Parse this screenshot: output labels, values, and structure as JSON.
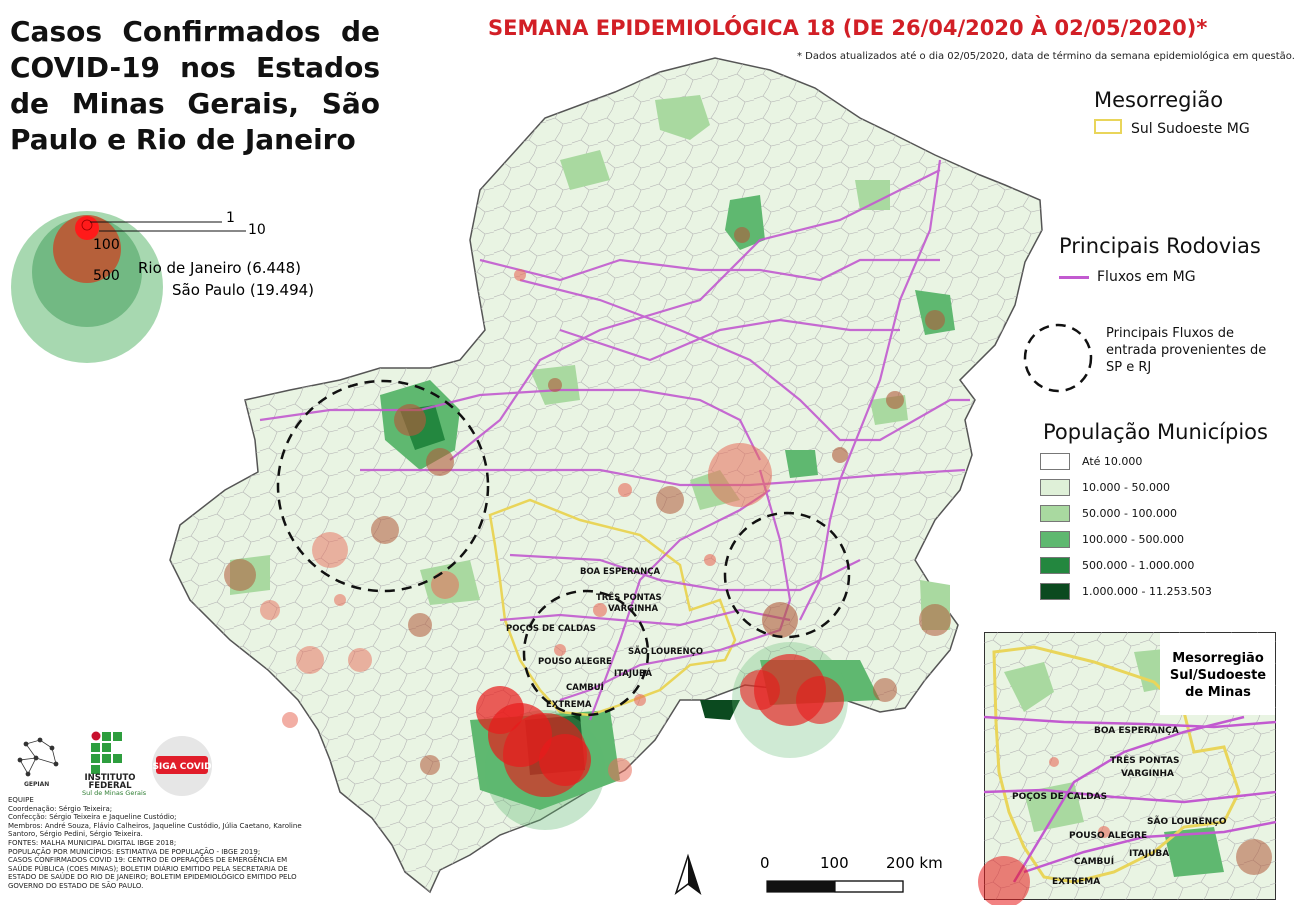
{
  "title": "Casos Confirmados de COVID-19 nos Estados de Minas Gerais, São Paulo e Rio de Janeiro",
  "subtitle": "SEMANA EPIDEMIOLÓGICA 18 (DE 26/04/2020 À 02/05/2020)*",
  "note": "* Dados atualizados até o dia 02/05/2020, data de término da semana epidemiológica em questão.",
  "circle_legend": {
    "values": [
      "1",
      "10",
      "100",
      "500"
    ],
    "rj_label": "Rio de Janeiro (6.448)",
    "sp_label": "São Paulo (19.494)"
  },
  "legend": {
    "meso_title": "Mesorregião",
    "meso_item": "Sul Sudoeste MG",
    "road_title": "Principais Rodovias",
    "road_item": "Fluxos em MG",
    "flow_item_1": "Principais Fluxos de",
    "flow_item_2": "entrada provenientes de",
    "flow_item_3": "SP e RJ",
    "pop_title": "População Municípios",
    "pop_classes": [
      {
        "label": "Até 10.000",
        "color": "#ffffff"
      },
      {
        "label": "10.000 - 50.000",
        "color": "#dff0d8"
      },
      {
        "label": "50.000 - 100.000",
        "color": "#a9d9a0"
      },
      {
        "label": "100.000 - 500.000",
        "color": "#5fb870"
      },
      {
        "label": "500.000 - 1.000.000",
        "color": "#23873f"
      },
      {
        "label": "1.000.000 - 11.253.503",
        "color": "#0b4a1f"
      }
    ]
  },
  "cities": [
    "BOA ESPERANÇA",
    "TRÊS PONTAS",
    "VARGINHA",
    "POÇOS DE CALDAS",
    "SÃO LOURENÇO",
    "POUSO ALEGRE",
    "ITAJUBÁ",
    "CAMBUÍ",
    "EXTREMA"
  ],
  "inset": {
    "title": "Mesorregião Sul/Sudoeste de Minas",
    "title_1": "Mesorregião",
    "title_2": "Sul/Sudoeste",
    "title_3": "de Minas"
  },
  "scale": {
    "labels": [
      "0",
      "100",
      "200 km"
    ]
  },
  "logos": {
    "gepian": "GEPIAN",
    "if_1": "INSTITUTO",
    "if_2": "FEDERAL",
    "if_3": "Sul de Minas Gerais",
    "siga": "SIGA COVID"
  },
  "credits": [
    "EQUIPE",
    "Coordenação: Sérgio Teixeira;",
    "Confecção: Sérgio Teixeira e Jaqueline Custódio;",
    "Membros: André Souza, Flávio Calheiros, Jaqueline Custódio, Júlia Caetano, Karoline Santoro, Sérgio Pedini, Sérgio Teixeira.",
    "FONTES: MALHA MUNICIPAL DIGITAL IBGE 2018;",
    "POPULAÇÃO POR MUNICÍPIOS: ESTIMATIVA DE POPULAÇÃO - IBGE 2019;",
    "CASOS CONFIRMADOS COVID 19: CENTRO DE OPERAÇÕES DE EMERGÊNCIA EM SAÚDE PÚBLICA (COES MINAS); BOLETIM DIÁRIO EMITIDO PELA SECRETARIA DE ESTADO DE SAÚDE DO RIO DE JANEIRO; BOLETIM EPIDEMIOLÓGICO EMITIDO PELO GOVERNO DO ESTADO DE SÃO PAULO."
  ]
}
